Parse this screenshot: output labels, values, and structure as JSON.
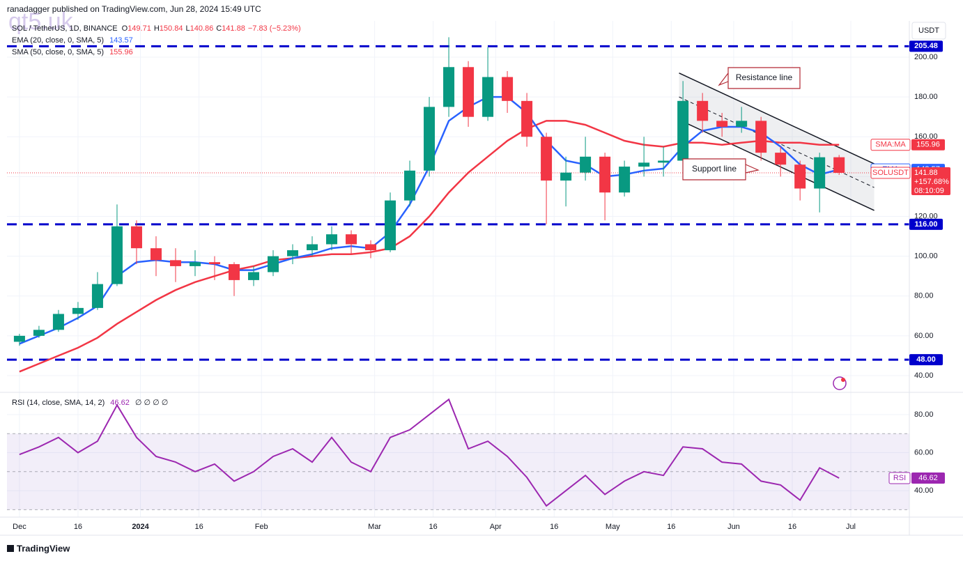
{
  "chart_data": {
    "type": "candlestick",
    "publisher": "ranadagger published on TradingView.com, Jun 28, 2024 15:49 UTC",
    "watermark": "qt5.uk",
    "symbol": "SOL / TetherUS, 1D, BINANCE",
    "ohlc_labels": [
      "O",
      "H",
      "L",
      "C"
    ],
    "change": "−7.83 (−5.23%)",
    "currency": "USDT",
    "brand": "TradingView",
    "x": [
      0,
      5,
      10,
      15,
      20,
      25,
      30,
      35,
      40,
      45,
      50,
      55,
      60,
      65,
      70,
      75,
      80,
      85,
      90,
      95,
      100,
      105,
      110,
      115,
      120,
      125,
      130,
      135,
      140,
      145,
      150,
      155,
      160,
      165,
      170,
      175,
      180,
      185,
      190,
      195,
      200,
      205,
      210
    ],
    "open": [
      57,
      60,
      63,
      71,
      74,
      86,
      115,
      104,
      98,
      95,
      97,
      96,
      88,
      92,
      100,
      103,
      106,
      111,
      106,
      103,
      128,
      143,
      175,
      195,
      170,
      190,
      178,
      160,
      138,
      142,
      150,
      132,
      145,
      147,
      148,
      178,
      168,
      165,
      168,
      152,
      146,
      134,
      149.71
    ],
    "high": [
      61,
      65,
      73,
      77,
      92,
      126,
      118,
      110,
      104,
      103,
      100,
      97,
      95,
      103,
      106,
      110,
      115,
      113,
      108,
      132,
      148,
      180,
      210,
      198,
      205,
      193,
      182,
      162,
      150,
      160,
      152,
      148,
      160,
      155,
      188,
      182,
      172,
      175,
      170,
      155,
      148,
      152,
      150.84
    ],
    "low": [
      55,
      59,
      62,
      68,
      73,
      85,
      96,
      90,
      87,
      90,
      88,
      80,
      85,
      90,
      96,
      100,
      103,
      101,
      99,
      102,
      125,
      140,
      170,
      165,
      168,
      172,
      155,
      116,
      125,
      138,
      118,
      130,
      140,
      140,
      146,
      162,
      160,
      162,
      148,
      140,
      128,
      122,
      140.86
    ],
    "close": [
      60,
      63,
      71,
      74,
      86,
      115,
      104,
      98,
      95,
      97,
      96,
      88,
      92,
      100,
      103,
      106,
      111,
      106,
      103,
      128,
      143,
      175,
      195,
      170,
      190,
      178,
      160,
      138,
      142,
      150,
      132,
      145,
      147,
      148,
      178,
      168,
      165,
      168,
      152,
      146,
      134,
      149.71,
      141.88
    ],
    "up_color": "#089981",
    "down_color": "#f23645",
    "ema": {
      "label": "EMA (20, close, 0, SMA, 5)",
      "tag": "EMA",
      "color": "#2962ff",
      "values": [
        56,
        60,
        64,
        69,
        75,
        90,
        97,
        98,
        97,
        97,
        96,
        93,
        93,
        96,
        99,
        101,
        104,
        105,
        104,
        112,
        126,
        145,
        168,
        175,
        180,
        180,
        172,
        158,
        148,
        146,
        140,
        141,
        143,
        144,
        155,
        163,
        165,
        165,
        162,
        155,
        146,
        141,
        143.57
      ]
    },
    "sma": {
      "label": "SMA (50, close, 0, SMA, 5)",
      "tag": "SMA:MA",
      "color": "#f23645",
      "values": [
        42,
        46,
        50,
        54,
        59,
        66,
        72,
        78,
        83,
        87,
        90,
        93,
        95,
        98,
        99,
        100,
        101,
        101,
        102,
        104,
        110,
        120,
        132,
        142,
        150,
        158,
        164,
        168,
        168,
        166,
        162,
        158,
        156,
        155,
        157,
        157,
        156,
        157,
        158,
        157,
        157,
        156,
        155.96
      ]
    },
    "price_tag": {
      "name": "SOLUSDT",
      "change": "+157.68%",
      "countdown": "08:10:09"
    },
    "xlim": [
      -3.2,
      228
    ],
    "ylim": [
      31.6,
      218.2
    ],
    "yticks": [
      {
        "value": 40,
        "label": "40.00"
      },
      {
        "value": 60,
        "label": "60.00"
      },
      {
        "value": 80,
        "label": "80.00"
      },
      {
        "value": 100,
        "label": "100.00"
      },
      {
        "value": 120,
        "label": "120.00"
      },
      {
        "value": 140,
        "label": "140.00"
      },
      {
        "value": 160,
        "label": "160.00"
      },
      {
        "value": 180,
        "label": "180.00"
      },
      {
        "value": 200,
        "label": "200.00"
      }
    ],
    "xticks": [
      {
        "value": 0,
        "label": "Dec"
      },
      {
        "value": 15,
        "label": "16"
      },
      {
        "value": 31,
        "label": "2024"
      },
      {
        "value": 46,
        "label": "16"
      },
      {
        "value": 62,
        "label": "Feb"
      },
      {
        "value": 91,
        "label": "Mar"
      },
      {
        "value": 106,
        "label": "16"
      },
      {
        "value": 122,
        "label": "Apr"
      },
      {
        "value": 137,
        "label": "16"
      },
      {
        "value": 152,
        "label": "May"
      },
      {
        "value": 167,
        "label": "16"
      },
      {
        "value": 183,
        "label": "Jun"
      },
      {
        "value": 198,
        "label": "16"
      },
      {
        "value": 213,
        "label": "Jul"
      }
    ],
    "levels": [
      205.48,
      {
        "value": 116,
        "label": "116.00"
      },
      {
        "value": 48,
        "label": "48.00"
      }
    ],
    "level_color": "#0000cc",
    "channel": {
      "upper": [
        [
          169,
          192
        ],
        [
          219,
          146.4
        ]
      ],
      "middle": [
        [
          169,
          180
        ],
        [
          219,
          134.5
        ]
      ],
      "lower": [
        [
          169,
          168.5
        ],
        [
          219,
          123
        ]
      ]
    },
    "annotations": [
      "Resistance line",
      "Support line"
    ],
    "rsi": {
      "label": "RSI (14, close, SMA, 14, 2)",
      "tag": "RSI",
      "color": "#9c27b0",
      "extra": "∅ ∅ ∅ ∅",
      "values": [
        59,
        63,
        68,
        60,
        66,
        85,
        68,
        58,
        55,
        50,
        54,
        45,
        50,
        58,
        62,
        55,
        68,
        55,
        50,
        68,
        72,
        80,
        88,
        62,
        66,
        58,
        47,
        32,
        40,
        48,
        38,
        45,
        50,
        48,
        63,
        62,
        55,
        54,
        45,
        43,
        35,
        52,
        46.62
      ],
      "ylim": [
        26.1,
        91.7
      ],
      "yticks": [
        {
          "value": 40,
          "label": "40.00"
        },
        {
          "value": 60,
          "label": "60.00"
        },
        {
          "value": 80,
          "label": "80.00"
        }
      ],
      "bands": [
        70,
        50,
        30
      ]
    }
  }
}
